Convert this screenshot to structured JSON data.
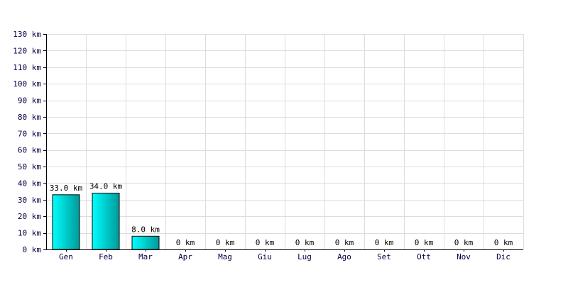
{
  "chart_data": {
    "type": "bar",
    "categories": [
      "Gen",
      "Feb",
      "Mar",
      "Apr",
      "Mag",
      "Giu",
      "Lug",
      "Ago",
      "Set",
      "Ott",
      "Nov",
      "Dic"
    ],
    "values": [
      33.0,
      34.0,
      8.0,
      0,
      0,
      0,
      0,
      0,
      0,
      0,
      0,
      0
    ],
    "data_labels": [
      "33.0 km",
      "34.0 km",
      "8.0 km",
      "0 km",
      "0 km",
      "0 km",
      "0 km",
      "0 km",
      "0 km",
      "0 km",
      "0 km",
      "0 km"
    ],
    "y_tick_values": [
      0,
      10,
      20,
      30,
      40,
      50,
      60,
      70,
      80,
      90,
      100,
      110,
      120,
      130
    ],
    "y_tick_labels": [
      "0 km",
      "10 km",
      "20 km",
      "30 km",
      "40 km",
      "50 km",
      "60 km",
      "70 km",
      "80 km",
      "90 km",
      "100 km",
      "110 km",
      "120 km",
      "130 km"
    ],
    "ylim": [
      0,
      130
    ],
    "grid": true,
    "legend": "none",
    "colors": {
      "bar_light": "#00ffff",
      "bar_dark": "#009999",
      "bar_edge": "#000000",
      "grid": "#dddddd",
      "axis": "#000000",
      "tick_text": "#000040"
    }
  }
}
